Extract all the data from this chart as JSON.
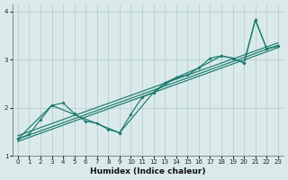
{
  "xlabel": "Humidex (Indice chaleur)",
  "bg_color": "#daeaea",
  "grid_color": "#b8cfcf",
  "line_color": "#1a7a6e",
  "xlim": [
    -0.5,
    23.5
  ],
  "ylim": [
    1.0,
    4.15
  ],
  "yticks": [
    1,
    2,
    3,
    4
  ],
  "xticks": [
    0,
    1,
    2,
    3,
    4,
    5,
    6,
    7,
    8,
    9,
    10,
    11,
    12,
    13,
    14,
    15,
    16,
    17,
    18,
    19,
    20,
    21,
    22,
    23
  ],
  "trend1_x": [
    0,
    23
  ],
  "trend1_y": [
    1.35,
    3.3
  ],
  "trend2_x": [
    0,
    23
  ],
  "trend2_y": [
    1.42,
    3.35
  ],
  "trend3_x": [
    0,
    23
  ],
  "trend3_y": [
    1.3,
    3.25
  ],
  "zigzag_x": [
    0,
    1,
    2,
    3,
    4,
    5,
    6,
    7,
    8,
    9,
    10,
    11,
    12,
    13,
    14,
    15,
    16,
    17,
    18,
    19,
    20,
    21,
    22,
    23
  ],
  "zigzag_y": [
    1.35,
    1.45,
    1.75,
    2.05,
    2.1,
    1.88,
    1.72,
    1.68,
    1.55,
    1.48,
    1.87,
    2.22,
    2.32,
    2.52,
    2.63,
    2.68,
    2.83,
    3.03,
    3.08,
    3.03,
    2.93,
    3.83,
    3.23,
    3.28
  ],
  "peak_x": [
    0,
    3,
    9,
    12,
    14,
    16,
    18,
    19,
    20,
    21,
    22,
    23
  ],
  "peak_y": [
    1.35,
    2.05,
    1.48,
    2.32,
    2.63,
    2.83,
    3.08,
    3.03,
    2.93,
    3.83,
    3.23,
    3.28
  ]
}
